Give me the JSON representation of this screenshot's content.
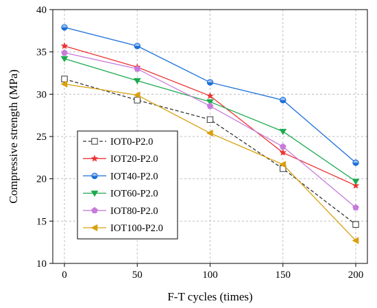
{
  "chart_data": {
    "type": "line",
    "title": "",
    "xlabel": "F-T cycles (times)",
    "ylabel": "Compressive strength (MPa)",
    "x": [
      0,
      50,
      100,
      150,
      200
    ],
    "xlim": [
      -8,
      208
    ],
    "ylim": [
      10,
      40
    ],
    "xticks": [
      0,
      50,
      100,
      150,
      200
    ],
    "yticks": [
      10,
      15,
      20,
      25,
      30,
      35,
      40
    ],
    "grid": true,
    "legend_position": "left-center",
    "series": [
      {
        "name": "IOT0-P2.0",
        "color": "#333333",
        "marker": "square-open",
        "dashed": true,
        "values": [
          31.8,
          29.3,
          27.0,
          21.2,
          14.6
        ]
      },
      {
        "name": "IOT20-P2.0",
        "color": "#ec3232",
        "marker": "star",
        "dashed": false,
        "values": [
          35.7,
          33.2,
          29.8,
          23.1,
          19.2
        ]
      },
      {
        "name": "IOT40-P2.0",
        "color": "#1b6fd9",
        "marker": "circle-half",
        "dashed": false,
        "values": [
          37.9,
          35.7,
          31.4,
          29.3,
          21.9
        ]
      },
      {
        "name": "IOT60-P2.0",
        "color": "#1aaa4e",
        "marker": "triangle-down",
        "dashed": false,
        "values": [
          34.2,
          31.6,
          29.1,
          25.6,
          19.7
        ]
      },
      {
        "name": "IOT80-P2.0",
        "color": "#c77bdb",
        "marker": "pentagon",
        "dashed": false,
        "values": [
          34.9,
          33.0,
          28.6,
          23.8,
          16.6
        ]
      },
      {
        "name": "IOT100-P2.0",
        "color": "#d9a00d",
        "marker": "triangle-left",
        "dashed": false,
        "values": [
          31.2,
          29.9,
          25.4,
          21.7,
          12.7
        ]
      }
    ]
  }
}
